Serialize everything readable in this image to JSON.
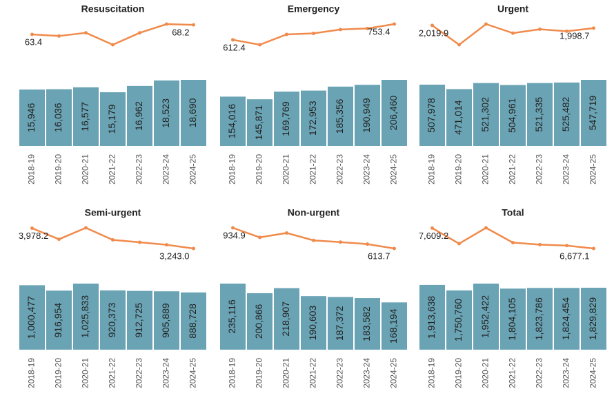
{
  "chart_data": [
    {
      "type": "bar-line",
      "title": "Resuscitation",
      "categories": [
        "2018-19",
        "2019-20",
        "2020-21",
        "2021-22",
        "2022-23",
        "2023-24",
        "2024-25"
      ],
      "series": [
        {
          "type": "bar",
          "color": "#6aa3b4",
          "values": [
            15946,
            16036,
            16577,
            15179,
            16962,
            18523,
            18690
          ],
          "value_labels": [
            "15,946",
            "16,036",
            "16,577",
            "15,179",
            "16,962",
            "18,523",
            "18,690"
          ]
        },
        {
          "type": "line",
          "color": "#f08a4b",
          "values": [
            63.4,
            62.6,
            64.2,
            58.2,
            64.2,
            68.6,
            68.2
          ],
          "value_labels": [
            "63.4",
            null,
            null,
            null,
            null,
            null,
            "68.2"
          ]
        }
      ]
    },
    {
      "type": "bar-line",
      "title": "Emergency",
      "categories": [
        "2018-19",
        "2019-20",
        "2020-21",
        "2021-22",
        "2022-23",
        "2023-24",
        "2024-25"
      ],
      "series": [
        {
          "type": "bar",
          "color": "#6aa3b4",
          "values": [
            154016,
            145871,
            169769,
            172953,
            185356,
            190949,
            206460
          ],
          "value_labels": [
            "154,016",
            "145,871",
            "169,769",
            "172,953",
            "185,356",
            "190,949",
            "206,460"
          ]
        },
        {
          "type": "line",
          "color": "#f08a4b",
          "values": [
            612.4,
            568,
            661,
            670,
            705,
            714,
            753.4
          ],
          "value_labels": [
            "612.4",
            null,
            null,
            null,
            null,
            null,
            "753.4"
          ]
        }
      ]
    },
    {
      "type": "bar-line",
      "title": "Urgent",
      "categories": [
        "2018-19",
        "2019-20",
        "2020-21",
        "2021-22",
        "2022-23",
        "2023-24",
        "2024-25"
      ],
      "series": [
        {
          "type": "bar",
          "color": "#6aa3b4",
          "values": [
            507978,
            471014,
            521302,
            504961,
            521335,
            525482,
            547719
          ],
          "value_labels": [
            "507,978",
            "471,014",
            "521,302",
            "504,961",
            "521,335",
            "525,482",
            "547,719"
          ]
        },
        {
          "type": "line",
          "color": "#f08a4b",
          "values": [
            2019.9,
            1870,
            2030,
            1960,
            1990,
            1975,
            1998.7
          ],
          "value_labels": [
            "2,019.9",
            null,
            null,
            null,
            null,
            null,
            "1,998.7"
          ]
        }
      ]
    },
    {
      "type": "bar-line",
      "title": "Semi-urgent",
      "categories": [
        "2018-19",
        "2019-20",
        "2020-21",
        "2021-22",
        "2022-23",
        "2023-24",
        "2024-25"
      ],
      "series": [
        {
          "type": "bar",
          "color": "#6aa3b4",
          "values": [
            1000477,
            916954,
            1025833,
            920373,
            912725,
            905889,
            888728
          ],
          "value_labels": [
            "1,000,477",
            "916,954",
            "1,025,833",
            "920,373",
            "912,725",
            "905,889",
            "888,728"
          ]
        },
        {
          "type": "line",
          "color": "#f08a4b",
          "values": [
            3978.2,
            3577,
            3990,
            3555,
            3466,
            3377,
            3243.0
          ],
          "value_labels": [
            "3,978.2",
            null,
            null,
            null,
            null,
            null,
            "3,243.0"
          ]
        }
      ]
    },
    {
      "type": "bar-line",
      "title": "Non-urgent",
      "categories": [
        "2018-19",
        "2019-20",
        "2020-21",
        "2021-22",
        "2022-23",
        "2023-24",
        "2024-25"
      ],
      "series": [
        {
          "type": "bar",
          "color": "#6aa3b4",
          "values": [
            235116,
            200866,
            218907,
            190603,
            187372,
            183582,
            168194
          ],
          "value_labels": [
            "235,116",
            "200,866",
            "218,907",
            "190,603",
            "187,372",
            "183,582",
            "168,194"
          ]
        },
        {
          "type": "line",
          "color": "#f08a4b",
          "values": [
            934.9,
            787,
            855,
            740,
            713,
            682,
            613.7
          ],
          "value_labels": [
            "934.9",
            null,
            null,
            null,
            null,
            null,
            "613.7"
          ]
        }
      ]
    },
    {
      "type": "bar-line",
      "title": "Total",
      "categories": [
        "2018-19",
        "2019-20",
        "2020-21",
        "2021-22",
        "2022-23",
        "2023-24",
        "2024-25"
      ],
      "series": [
        {
          "type": "bar",
          "color": "#6aa3b4",
          "values": [
            1913638,
            1750760,
            1952422,
            1804105,
            1823786,
            1824454,
            1829829
          ],
          "value_labels": [
            "1,913,638",
            "1,750,760",
            "1,952,422",
            "1,804,105",
            "1,823,786",
            "1,824,454",
            "1,829,829"
          ]
        },
        {
          "type": "line",
          "color": "#f08a4b",
          "values": [
            7609.2,
            6899,
            7620,
            6944,
            6855,
            6810,
            6677.1
          ],
          "value_labels": [
            "7,609.2",
            null,
            null,
            null,
            null,
            null,
            "6,677.1"
          ]
        }
      ]
    }
  ]
}
